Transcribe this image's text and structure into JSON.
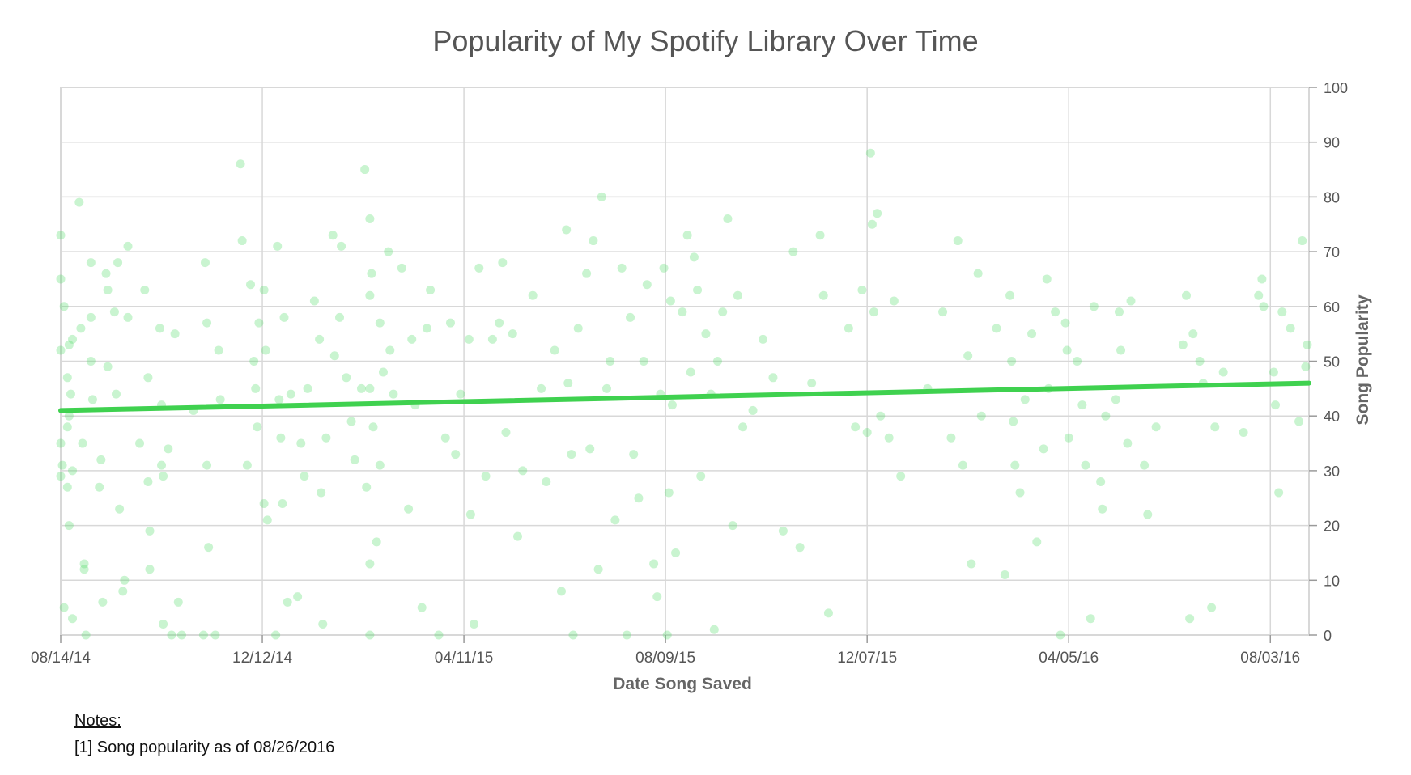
{
  "title": "Popularity of My Spotify Library Over Time",
  "notes_label": "Notes:",
  "notes": [
    "[1] Song popularity as of 08/26/2016"
  ],
  "chart_data": {
    "type": "scatter",
    "title": "Popularity of My Spotify Library Over Time",
    "xlabel": "Date Song Saved",
    "ylabel": "Song Popularity",
    "x_ticks": [
      "08/14/14",
      "12/12/14",
      "04/11/15",
      "08/09/15",
      "12/07/15",
      "04/05/16",
      "08/03/16"
    ],
    "y_ticks": [
      0,
      10,
      20,
      30,
      40,
      50,
      60,
      70,
      80,
      90,
      100
    ],
    "xlim": [
      "08/14/14",
      "08/26/16"
    ],
    "ylim": [
      0,
      100
    ],
    "y_axis_side": "right",
    "grid": true,
    "colors": {
      "points": "#4cd964",
      "trend": "#3fd14f",
      "grid": "#d8d8d8",
      "axis": "#9a9a9a"
    },
    "trendline": {
      "x": [
        "08/14/14",
        "08/26/16"
      ],
      "y": [
        41,
        46
      ]
    },
    "series": [
      {
        "type": "scatter",
        "points": [
          [
            "08/14/14",
            52
          ],
          [
            "08/14/14",
            29
          ],
          [
            "08/14/14",
            35
          ],
          [
            "08/14/14",
            73
          ],
          [
            "08/14/14",
            65
          ],
          [
            "08/15/14",
            31
          ],
          [
            "08/16/14",
            60
          ],
          [
            "08/16/14",
            5
          ],
          [
            "08/18/14",
            47
          ],
          [
            "08/18/14",
            38
          ],
          [
            "08/18/14",
            27
          ],
          [
            "08/19/14",
            53
          ],
          [
            "08/19/14",
            40
          ],
          [
            "08/19/14",
            20
          ],
          [
            "08/20/14",
            44
          ],
          [
            "08/21/14",
            54
          ],
          [
            "08/21/14",
            30
          ],
          [
            "08/21/14",
            3
          ],
          [
            "08/25/14",
            79
          ],
          [
            "08/26/14",
            56
          ],
          [
            "08/27/14",
            35
          ],
          [
            "08/28/14",
            13
          ],
          [
            "08/28/14",
            12
          ],
          [
            "08/29/14",
            0
          ],
          [
            "09/01/14",
            68
          ],
          [
            "09/01/14",
            58
          ],
          [
            "09/01/14",
            50
          ],
          [
            "09/02/14",
            43
          ],
          [
            "09/06/14",
            27
          ],
          [
            "09/07/14",
            32
          ],
          [
            "09/08/14",
            6
          ],
          [
            "09/10/14",
            66
          ],
          [
            "09/11/14",
            49
          ],
          [
            "09/11/14",
            63
          ],
          [
            "09/15/14",
            59
          ],
          [
            "09/16/14",
            44
          ],
          [
            "09/17/14",
            68
          ],
          [
            "09/18/14",
            23
          ],
          [
            "09/20/14",
            8
          ],
          [
            "09/21/14",
            10
          ],
          [
            "09/23/14",
            71
          ],
          [
            "09/23/14",
            58
          ],
          [
            "09/30/14",
            35
          ],
          [
            "10/03/14",
            63
          ],
          [
            "10/05/14",
            47
          ],
          [
            "10/05/14",
            28
          ],
          [
            "10/06/14",
            19
          ],
          [
            "10/06/14",
            12
          ],
          [
            "10/12/14",
            56
          ],
          [
            "10/13/14",
            42
          ],
          [
            "10/13/14",
            31
          ],
          [
            "10/14/14",
            29
          ],
          [
            "10/14/14",
            2
          ],
          [
            "10/17/14",
            34
          ],
          [
            "10/19/14",
            0
          ],
          [
            "10/21/14",
            55
          ],
          [
            "10/23/14",
            6
          ],
          [
            "10/25/14",
            0
          ],
          [
            "11/01/14",
            41
          ],
          [
            "11/07/14",
            0
          ],
          [
            "11/08/14",
            68
          ],
          [
            "11/09/14",
            57
          ],
          [
            "11/09/14",
            31
          ],
          [
            "11/10/14",
            16
          ],
          [
            "11/14/14",
            0
          ],
          [
            "11/16/14",
            52
          ],
          [
            "11/17/14",
            43
          ],
          [
            "11/29/14",
            86
          ],
          [
            "11/30/14",
            72
          ],
          [
            "12/03/14",
            31
          ],
          [
            "12/05/14",
            64
          ],
          [
            "12/07/14",
            50
          ],
          [
            "12/08/14",
            45
          ],
          [
            "12/09/14",
            38
          ],
          [
            "12/10/14",
            57
          ],
          [
            "12/13/14",
            63
          ],
          [
            "12/13/14",
            24
          ],
          [
            "12/14/14",
            52
          ],
          [
            "12/15/14",
            21
          ],
          [
            "12/20/14",
            0
          ],
          [
            "12/21/14",
            71
          ],
          [
            "12/22/14",
            43
          ],
          [
            "12/23/14",
            36
          ],
          [
            "12/24/14",
            24
          ],
          [
            "12/25/14",
            58
          ],
          [
            "12/27/14",
            6
          ],
          [
            "12/29/14",
            44
          ],
          [
            "01/02/15",
            7
          ],
          [
            "01/04/15",
            35
          ],
          [
            "01/06/15",
            29
          ],
          [
            "01/08/15",
            45
          ],
          [
            "01/12/15",
            61
          ],
          [
            "01/15/15",
            54
          ],
          [
            "01/16/15",
            26
          ],
          [
            "01/17/15",
            2
          ],
          [
            "01/19/15",
            36
          ],
          [
            "01/23/15",
            73
          ],
          [
            "01/24/15",
            51
          ],
          [
            "01/27/15",
            58
          ],
          [
            "01/28/15",
            71
          ],
          [
            "01/31/15",
            47
          ],
          [
            "02/03/15",
            39
          ],
          [
            "02/05/15",
            32
          ],
          [
            "02/09/15",
            45
          ],
          [
            "02/11/15",
            85
          ],
          [
            "02/12/15",
            27
          ],
          [
            "02/14/15",
            76
          ],
          [
            "02/14/15",
            62
          ],
          [
            "02/14/15",
            45
          ],
          [
            "02/14/15",
            13
          ],
          [
            "02/14/15",
            0
          ],
          [
            "02/15/15",
            66
          ],
          [
            "02/16/15",
            38
          ],
          [
            "02/18/15",
            17
          ],
          [
            "02/20/15",
            57
          ],
          [
            "02/20/15",
            31
          ],
          [
            "02/22/15",
            48
          ],
          [
            "02/25/15",
            70
          ],
          [
            "02/26/15",
            52
          ],
          [
            "02/28/15",
            44
          ],
          [
            "03/05/15",
            67
          ],
          [
            "03/09/15",
            23
          ],
          [
            "03/11/15",
            54
          ],
          [
            "03/13/15",
            42
          ],
          [
            "03/17/15",
            5
          ],
          [
            "03/20/15",
            56
          ],
          [
            "03/22/15",
            63
          ],
          [
            "03/27/15",
            0
          ],
          [
            "03/31/15",
            36
          ],
          [
            "04/03/15",
            57
          ],
          [
            "04/06/15",
            33
          ],
          [
            "04/09/15",
            44
          ],
          [
            "04/14/15",
            54
          ],
          [
            "04/15/15",
            22
          ],
          [
            "04/17/15",
            2
          ],
          [
            "04/20/15",
            67
          ],
          [
            "04/24/15",
            29
          ],
          [
            "04/28/15",
            54
          ],
          [
            "05/02/15",
            57
          ],
          [
            "05/04/15",
            68
          ],
          [
            "05/06/15",
            37
          ],
          [
            "05/10/15",
            55
          ],
          [
            "05/13/15",
            18
          ],
          [
            "05/16/15",
            30
          ],
          [
            "05/22/15",
            62
          ],
          [
            "05/27/15",
            45
          ],
          [
            "05/30/15",
            28
          ],
          [
            "06/04/15",
            52
          ],
          [
            "06/08/15",
            8
          ],
          [
            "06/11/15",
            74
          ],
          [
            "06/12/15",
            46
          ],
          [
            "06/14/15",
            33
          ],
          [
            "06/15/15",
            0
          ],
          [
            "06/18/15",
            56
          ],
          [
            "06/23/15",
            66
          ],
          [
            "06/25/15",
            34
          ],
          [
            "06/27/15",
            72
          ],
          [
            "06/30/15",
            12
          ],
          [
            "07/02/15",
            80
          ],
          [
            "07/05/15",
            45
          ],
          [
            "07/07/15",
            50
          ],
          [
            "07/10/15",
            21
          ],
          [
            "07/14/15",
            67
          ],
          [
            "07/17/15",
            0
          ],
          [
            "07/19/15",
            58
          ],
          [
            "07/21/15",
            33
          ],
          [
            "07/24/15",
            25
          ],
          [
            "07/27/15",
            50
          ],
          [
            "07/29/15",
            64
          ],
          [
            "08/02/15",
            13
          ],
          [
            "08/04/15",
            7
          ],
          [
            "08/06/15",
            44
          ],
          [
            "08/08/15",
            67
          ],
          [
            "08/10/15",
            0
          ],
          [
            "08/11/15",
            26
          ],
          [
            "08/12/15",
            61
          ],
          [
            "08/13/15",
            42
          ],
          [
            "08/15/15",
            15
          ],
          [
            "08/19/15",
            59
          ],
          [
            "08/22/15",
            73
          ],
          [
            "08/24/15",
            48
          ],
          [
            "08/26/15",
            69
          ],
          [
            "08/28/15",
            63
          ],
          [
            "08/30/15",
            29
          ],
          [
            "09/02/15",
            55
          ],
          [
            "09/05/15",
            44
          ],
          [
            "09/07/15",
            1
          ],
          [
            "09/09/15",
            50
          ],
          [
            "09/12/15",
            59
          ],
          [
            "09/15/15",
            76
          ],
          [
            "09/18/15",
            20
          ],
          [
            "09/21/15",
            62
          ],
          [
            "09/24/15",
            38
          ],
          [
            "09/30/15",
            41
          ],
          [
            "10/06/15",
            54
          ],
          [
            "10/12/15",
            47
          ],
          [
            "10/18/15",
            19
          ],
          [
            "10/24/15",
            70
          ],
          [
            "10/28/15",
            16
          ],
          [
            "11/04/15",
            46
          ],
          [
            "11/09/15",
            73
          ],
          [
            "11/11/15",
            62
          ],
          [
            "11/14/15",
            4
          ],
          [
            "11/26/15",
            56
          ],
          [
            "11/30/15",
            38
          ],
          [
            "12/04/15",
            63
          ],
          [
            "12/07/15",
            37
          ],
          [
            "12/09/15",
            88
          ],
          [
            "12/10/15",
            75
          ],
          [
            "12/11/15",
            59
          ],
          [
            "12/13/15",
            77
          ],
          [
            "12/15/15",
            40
          ],
          [
            "12/20/15",
            36
          ],
          [
            "12/23/15",
            61
          ],
          [
            "12/27/15",
            29
          ],
          [
            "01/12/16",
            45
          ],
          [
            "01/21/16",
            59
          ],
          [
            "01/26/16",
            36
          ],
          [
            "01/30/16",
            72
          ],
          [
            "02/02/16",
            31
          ],
          [
            "02/05/16",
            51
          ],
          [
            "02/07/16",
            13
          ],
          [
            "02/11/16",
            66
          ],
          [
            "02/13/16",
            40
          ],
          [
            "02/22/16",
            56
          ],
          [
            "02/27/16",
            11
          ],
          [
            "03/01/16",
            62
          ],
          [
            "03/02/16",
            50
          ],
          [
            "03/03/16",
            39
          ],
          [
            "03/04/16",
            31
          ],
          [
            "03/07/16",
            26
          ],
          [
            "03/10/16",
            43
          ],
          [
            "03/14/16",
            55
          ],
          [
            "03/17/16",
            17
          ],
          [
            "03/21/16",
            34
          ],
          [
            "03/23/16",
            65
          ],
          [
            "03/24/16",
            45
          ],
          [
            "03/28/16",
            59
          ],
          [
            "03/31/16",
            0
          ],
          [
            "04/03/16",
            57
          ],
          [
            "04/04/16",
            52
          ],
          [
            "04/05/16",
            36
          ],
          [
            "04/10/16",
            50
          ],
          [
            "04/13/16",
            42
          ],
          [
            "04/15/16",
            31
          ],
          [
            "04/18/16",
            3
          ],
          [
            "04/20/16",
            60
          ],
          [
            "04/24/16",
            28
          ],
          [
            "04/25/16",
            23
          ],
          [
            "04/27/16",
            40
          ],
          [
            "05/03/16",
            43
          ],
          [
            "05/05/16",
            59
          ],
          [
            "05/06/16",
            52
          ],
          [
            "05/10/16",
            35
          ],
          [
            "05/12/16",
            61
          ],
          [
            "05/20/16",
            31
          ],
          [
            "05/22/16",
            22
          ],
          [
            "05/27/16",
            38
          ],
          [
            "06/12/16",
            53
          ],
          [
            "06/14/16",
            62
          ],
          [
            "06/16/16",
            3
          ],
          [
            "06/18/16",
            55
          ],
          [
            "06/22/16",
            50
          ],
          [
            "06/24/16",
            46
          ],
          [
            "06/29/16",
            5
          ],
          [
            "07/01/16",
            38
          ],
          [
            "07/06/16",
            48
          ],
          [
            "07/18/16",
            37
          ],
          [
            "07/27/16",
            62
          ],
          [
            "07/29/16",
            65
          ],
          [
            "07/30/16",
            60
          ],
          [
            "08/05/16",
            48
          ],
          [
            "08/06/16",
            42
          ],
          [
            "08/08/16",
            26
          ],
          [
            "08/10/16",
            59
          ],
          [
            "08/15/16",
            56
          ],
          [
            "08/20/16",
            39
          ],
          [
            "08/22/16",
            72
          ],
          [
            "08/24/16",
            49
          ],
          [
            "08/25/16",
            53
          ]
        ]
      }
    ]
  }
}
